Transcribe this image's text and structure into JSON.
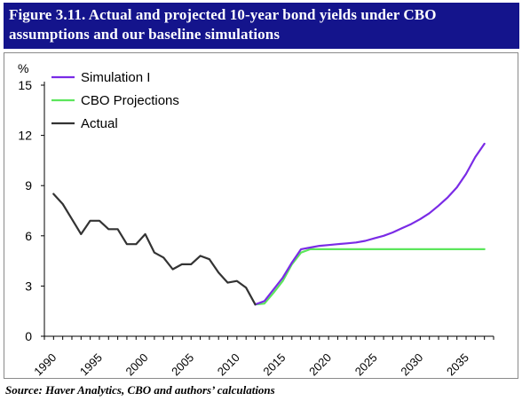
{
  "figure": {
    "title_line1": "Figure 3.11. Actual and projected 10-year bond yields under CBO",
    "title_line2": "assumptions and our baseline simulations",
    "source": "Source:  Haver Analytics, CBO and authors’ calculations"
  },
  "chart_data": {
    "type": "line",
    "title": "Figure 3.11. Actual and projected 10-year bond yields under CBO assumptions and our baseline simulations",
    "ylabel": "%",
    "xlabel": "",
    "xlim": [
      1990,
      2039
    ],
    "ylim": [
      0,
      15
    ],
    "yticks": [
      0,
      3,
      6,
      9,
      12,
      15
    ],
    "xticks": [
      1990,
      1995,
      2000,
      2005,
      2010,
      2015,
      2020,
      2025,
      2030,
      2035
    ],
    "grid": false,
    "legend_position": "top-left",
    "series": [
      {
        "name": "Simulation I",
        "color": "#7a2be6",
        "x": [
          2013,
          2014,
          2015,
          2016,
          2017,
          2018,
          2019,
          2020,
          2021,
          2022,
          2023,
          2024,
          2025,
          2026,
          2027,
          2028,
          2029,
          2030,
          2031,
          2032,
          2033,
          2034,
          2035,
          2036,
          2037,
          2038
        ],
        "y": [
          1.9,
          2.1,
          2.8,
          3.5,
          4.4,
          5.2,
          5.3,
          5.4,
          5.45,
          5.5,
          5.55,
          5.6,
          5.7,
          5.85,
          6.0,
          6.2,
          6.45,
          6.7,
          7.0,
          7.35,
          7.8,
          8.3,
          8.9,
          9.7,
          10.7,
          11.5
        ]
      },
      {
        "name": "CBO Projections",
        "color": "#5ce65c",
        "x": [
          2013,
          2014,
          2015,
          2016,
          2017,
          2018,
          2019,
          2020,
          2021,
          2022,
          2023,
          2024,
          2025,
          2026,
          2027,
          2028,
          2029,
          2030,
          2031,
          2032,
          2033,
          2034,
          2035,
          2036,
          2037,
          2038
        ],
        "y": [
          1.9,
          1.95,
          2.6,
          3.3,
          4.3,
          5.0,
          5.2,
          5.2,
          5.2,
          5.2,
          5.2,
          5.2,
          5.2,
          5.2,
          5.2,
          5.2,
          5.2,
          5.2,
          5.2,
          5.2,
          5.2,
          5.2,
          5.2,
          5.2,
          5.2,
          5.2
        ]
      },
      {
        "name": "Actual",
        "color": "#333333",
        "x": [
          1991,
          1992,
          1993,
          1994,
          1995,
          1996,
          1997,
          1998,
          1999,
          2000,
          2001,
          2002,
          2003,
          2004,
          2005,
          2006,
          2007,
          2008,
          2009,
          2010,
          2011,
          2012,
          2013
        ],
        "y": [
          8.5,
          7.9,
          7.0,
          6.1,
          6.9,
          6.9,
          6.4,
          6.4,
          5.5,
          5.5,
          6.1,
          5.0,
          4.7,
          4.0,
          4.3,
          4.3,
          4.8,
          4.6,
          3.8,
          3.2,
          3.3,
          2.9,
          1.9
        ]
      }
    ]
  }
}
